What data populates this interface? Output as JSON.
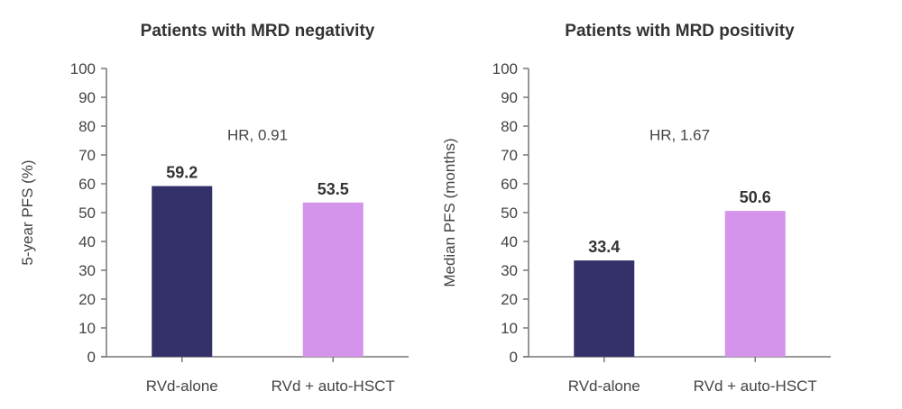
{
  "chart_data": [
    {
      "type": "bar",
      "title": "Patients with MRD negativity",
      "ylabel": "5-year PFS (%)",
      "categories": [
        "RVd-alone",
        "RVd + auto-HSCT"
      ],
      "values": [
        59.2,
        53.5
      ],
      "value_labels": [
        "59.2",
        "53.5"
      ],
      "annotation": "HR, 0.91",
      "ylim": [
        0,
        100
      ],
      "yticks": [
        0,
        10,
        20,
        30,
        40,
        50,
        60,
        70,
        80,
        90,
        100
      ],
      "grid": false,
      "colors": [
        "#34306a",
        "#d494ec"
      ]
    },
    {
      "type": "bar",
      "title": "Patients with MRD positivity",
      "ylabel": "Median PFS (months)",
      "categories": [
        "RVd-alone",
        "RVd + auto-HSCT"
      ],
      "values": [
        33.4,
        50.6
      ],
      "value_labels": [
        "33.4",
        "50.6"
      ],
      "annotation": "HR, 1.67",
      "ylim": [
        0,
        100
      ],
      "yticks": [
        0,
        10,
        20,
        30,
        40,
        50,
        60,
        70,
        80,
        90,
        100
      ],
      "grid": false,
      "colors": [
        "#34306a",
        "#d494ec"
      ]
    }
  ]
}
